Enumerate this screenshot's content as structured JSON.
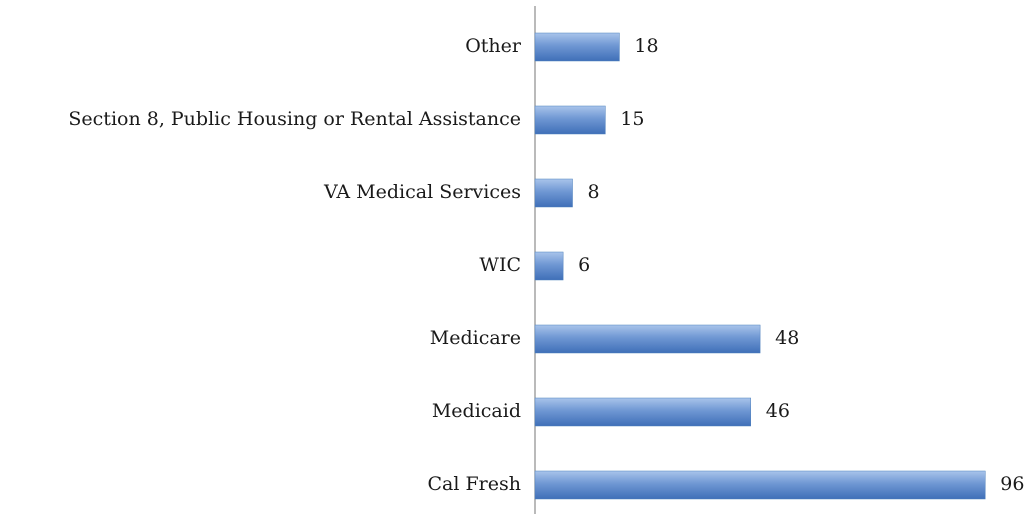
{
  "chart_data": {
    "type": "bar",
    "orientation": "horizontal",
    "categories": [
      "Other",
      "Section 8, Public Housing or Rental Assistance",
      "VA Medical Services",
      "WIC",
      "Medicare",
      "Medicaid",
      "Cal Fresh"
    ],
    "values": [
      18,
      15,
      8,
      6,
      48,
      46,
      96
    ],
    "color": "#4f81bd"
  }
}
